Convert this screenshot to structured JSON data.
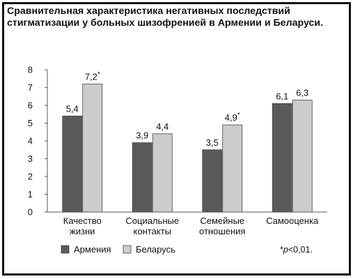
{
  "chart_data": {
    "type": "bar",
    "title": "Сравнительная характеристика негативных последствий стигматизации у больных шизофренией в Армении и Беларуси.",
    "categories": [
      [
        "Качество",
        "жизни"
      ],
      [
        "Социальные",
        "контакты"
      ],
      [
        "Семейные",
        "отношения"
      ],
      [
        "Самооценка"
      ]
    ],
    "series": [
      {
        "name": "Армения",
        "color": "#5a5a5a",
        "values": [
          5.4,
          3.9,
          3.5,
          6.1
        ],
        "labels": [
          "5,4",
          "3,9",
          "3,5",
          "6,1"
        ],
        "marks": [
          "",
          "",
          "",
          ""
        ]
      },
      {
        "name": "Беларусь",
        "color": "#cccccc",
        "values": [
          7.2,
          4.4,
          4.9,
          6.3
        ],
        "labels": [
          "7,2",
          "4,4",
          "4,9",
          "6,3"
        ],
        "marks": [
          "*",
          "",
          "*",
          ""
        ]
      }
    ],
    "ylim": [
      0,
      8
    ],
    "yticks": [
      "0",
      "1",
      "2",
      "3",
      "4",
      "5",
      "6",
      "7",
      "8"
    ],
    "grid": false,
    "legend_position": "bottom-left",
    "footnote": {
      "star": "*",
      "p": "p",
      "rest": "<0,01."
    }
  }
}
